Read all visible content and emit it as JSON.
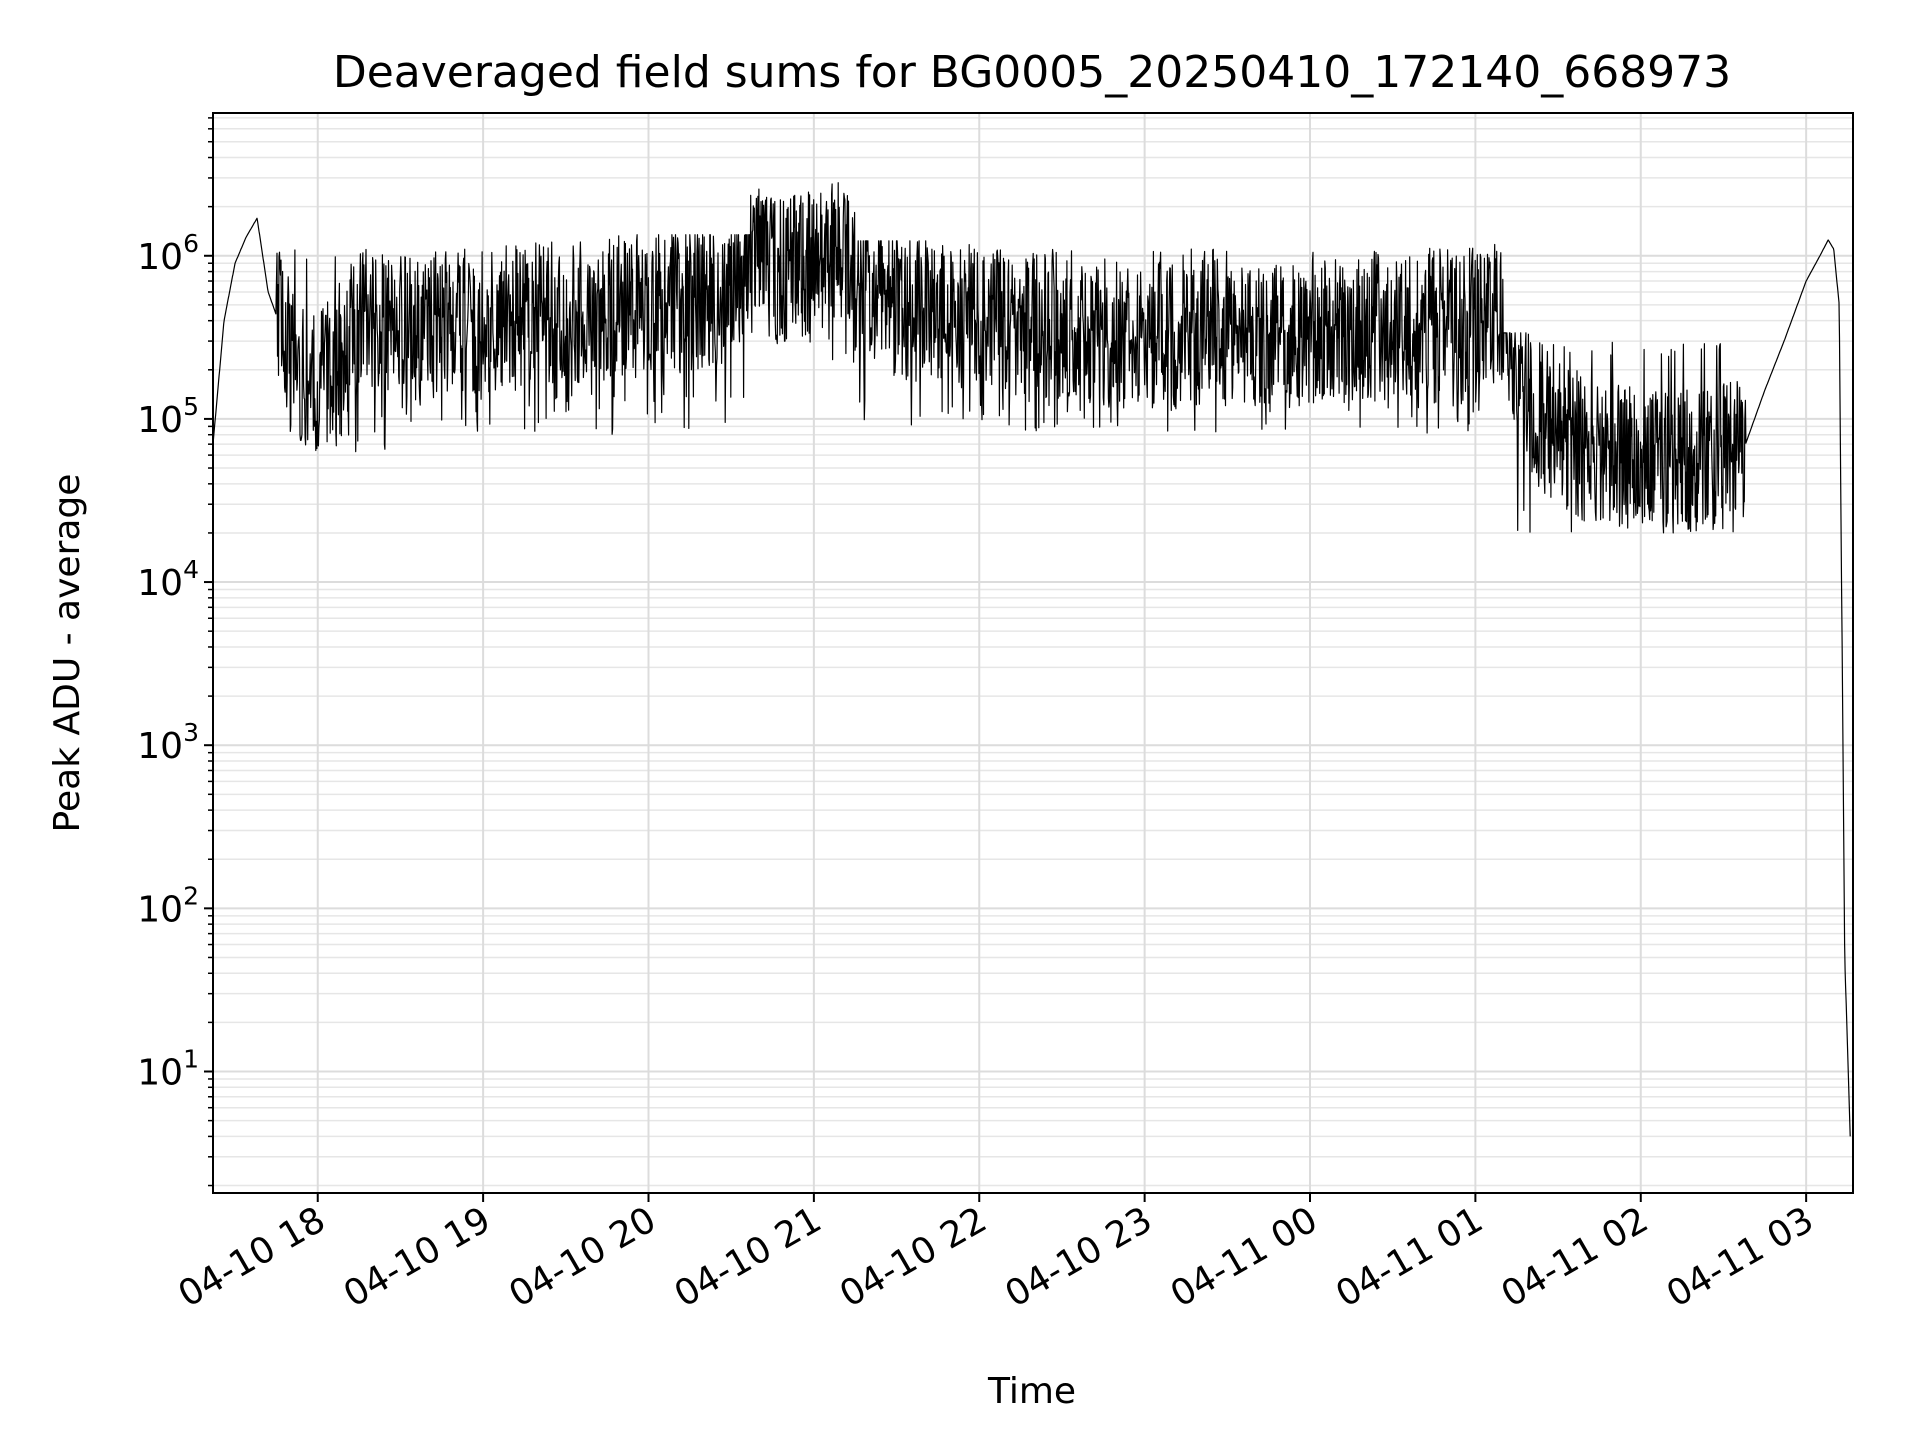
{
  "chart_data": {
    "type": "line",
    "title": "Deaveraged field sums for BG0005_20250410_172140_668973",
    "xlabel": "Time",
    "ylabel": "Peak ADU - average",
    "x_axis": {
      "kind": "datetime",
      "range": [
        "2025-04-10T17:22:00",
        "2025-04-11T03:17:00"
      ],
      "tick_labels": [
        "04-10 18",
        "04-10 19",
        "04-10 20",
        "04-10 21",
        "04-10 22",
        "04-10 23",
        "04-11 00",
        "04-11 01",
        "04-11 02",
        "04-11 03"
      ],
      "tick_values": [
        "2025-04-10T18:00:00",
        "2025-04-10T19:00:00",
        "2025-04-10T20:00:00",
        "2025-04-10T21:00:00",
        "2025-04-10T22:00:00",
        "2025-04-10T23:00:00",
        "2025-04-11T00:00:00",
        "2025-04-11T01:00:00",
        "2025-04-11T02:00:00",
        "2025-04-11T03:00:00"
      ]
    },
    "y_axis": {
      "scale": "log",
      "range": [
        1.8,
        7500000
      ],
      "tick_labels": [
        {
          "base": "10",
          "exp": "1"
        },
        {
          "base": "10",
          "exp": "2"
        },
        {
          "base": "10",
          "exp": "3"
        },
        {
          "base": "10",
          "exp": "4"
        },
        {
          "base": "10",
          "exp": "5"
        },
        {
          "base": "10",
          "exp": "6"
        }
      ],
      "tick_values": [
        10,
        100,
        1000,
        10000,
        100000,
        1000000
      ]
    },
    "grid": {
      "major": true,
      "minor_y": true
    },
    "series": [
      {
        "color": "#000000",
        "x": [
          "2025-04-10T17:22:00",
          "2025-04-10T17:26:00",
          "2025-04-10T17:30:00",
          "2025-04-10T17:34:00",
          "2025-04-10T17:38:00",
          "2025-04-10T17:42:00",
          "2025-04-10T17:50:00",
          "2025-04-10T18:00:00",
          "2025-04-10T18:15:00",
          "2025-04-10T18:30:00",
          "2025-04-10T18:45:00",
          "2025-04-10T19:00:00",
          "2025-04-10T19:15:00",
          "2025-04-10T19:30:00",
          "2025-04-10T19:45:00",
          "2025-04-10T20:00:00",
          "2025-04-10T20:15:00",
          "2025-04-10T20:30:00",
          "2025-04-10T20:37:00",
          "2025-04-10T20:45:00",
          "2025-04-10T21:00:00",
          "2025-04-10T21:08:00",
          "2025-04-10T21:15:00",
          "2025-04-10T21:30:00",
          "2025-04-10T21:45:00",
          "2025-04-10T22:00:00",
          "2025-04-10T22:15:00",
          "2025-04-10T22:30:00",
          "2025-04-10T22:45:00",
          "2025-04-10T23:00:00",
          "2025-04-10T23:15:00",
          "2025-04-10T23:30:00",
          "2025-04-10T23:45:00",
          "2025-04-11T00:00:00",
          "2025-04-11T00:15:00",
          "2025-04-11T00:30:00",
          "2025-04-11T00:45:00",
          "2025-04-11T01:00:00",
          "2025-04-11T01:10:00",
          "2025-04-11T01:20:00",
          "2025-04-11T01:30:00",
          "2025-04-11T01:45:00",
          "2025-04-11T02:00:00",
          "2025-04-11T02:15:00",
          "2025-04-11T02:30:00",
          "2025-04-11T02:38:00",
          "2025-04-11T02:45:00",
          "2025-04-11T02:52:00",
          "2025-04-11T03:00:00",
          "2025-04-11T03:05:00",
          "2025-04-11T03:08:00",
          "2025-04-11T03:10:00",
          "2025-04-11T03:12:00",
          "2025-04-11T03:14:00",
          "2025-04-11T03:16:00"
        ],
        "y": [
          70000,
          400000,
          900000,
          1300000,
          1700000,
          600000,
          250000,
          150000,
          400000,
          350000,
          380000,
          400000,
          420000,
          450000,
          480000,
          500000,
          550000,
          600000,
          1000000,
          800000,
          900000,
          1100000,
          700000,
          500000,
          450000,
          420000,
          380000,
          350000,
          330000,
          320000,
          330000,
          340000,
          330000,
          320000,
          350000,
          380000,
          400000,
          420000,
          450000,
          120000,
          80000,
          60000,
          55000,
          55000,
          60000,
          70000,
          150000,
          300000,
          700000,
          1000000,
          1250000,
          1100000,
          500000,
          50,
          4
        ],
        "noise_band": {
          "segments": [
            {
              "x_from": "2025-04-10T17:45:00",
              "x_to": "2025-04-10T18:30:00",
              "low": 60000,
              "high": 1100000
            },
            {
              "x_from": "2025-04-10T18:30:00",
              "x_to": "2025-04-10T20:37:00",
              "low": 80000,
              "high": 1200000
            },
            {
              "x_from": "2025-04-10T20:37:00",
              "x_to": "2025-04-10T21:15:00",
              "low": 200000,
              "high": 2500000
            },
            {
              "x_from": "2025-04-10T21:15:00",
              "x_to": "2025-04-11T01:10:00",
              "low": 80000,
              "high": 1100000
            },
            {
              "x_from": "2025-04-11T01:10:00",
              "x_to": "2025-04-11T02:38:00",
              "low": 20000,
              "high": 300000
            }
          ]
        }
      }
    ]
  }
}
